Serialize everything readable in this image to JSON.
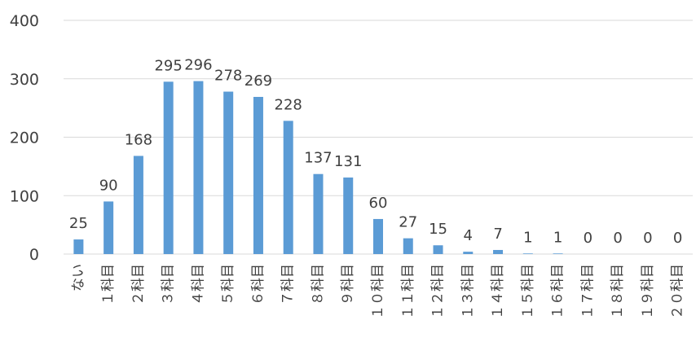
{
  "chart_data": {
    "type": "bar",
    "categories": [
      "ない",
      "１科目",
      "２科目",
      "３科目",
      "４科目",
      "５科目",
      "６科目",
      "７科目",
      "８科目",
      "９科目",
      "１０科目",
      "１１科目",
      "１２科目",
      "１３科目",
      "１４科目",
      "１５科目",
      "１６科目",
      "１７科目",
      "１８科目",
      "１９科目",
      "２０科目"
    ],
    "values": [
      25,
      90,
      168,
      295,
      296,
      278,
      269,
      228,
      137,
      131,
      60,
      27,
      15,
      4,
      7,
      1,
      1,
      0,
      0,
      0,
      0
    ],
    "ylim": [
      0,
      400
    ],
    "yticks": [
      0,
      100,
      200,
      300,
      400
    ],
    "data_labels": true,
    "grid": true,
    "colors": {
      "bar": "#5B9BD5",
      "grid": "#D9D9D9",
      "text": "#404040"
    }
  }
}
